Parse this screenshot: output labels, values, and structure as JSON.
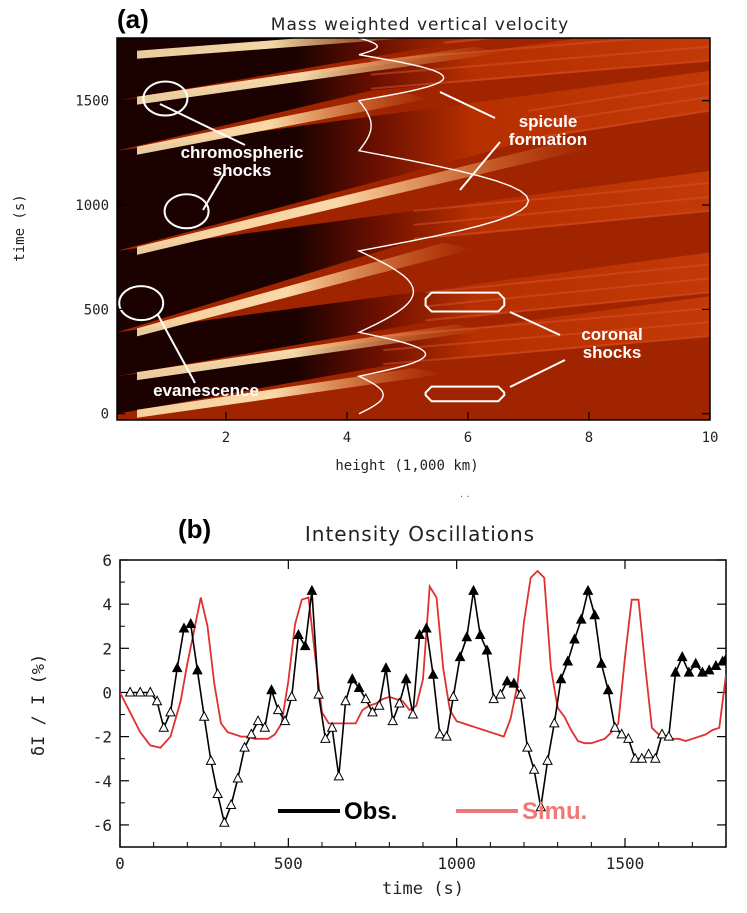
{
  "colors": {
    "obs": "#000000",
    "sim": "#e03030",
    "sim_legend": "#f07878",
    "annotation": "#ffffff",
    "heat_dark": "#140000",
    "heat_mid": "#b83000",
    "heat_light": "#ffe2b0"
  },
  "chart_data": [
    {
      "type": "heatmap",
      "panel_label": "(a)",
      "title": "Mass weighted vertical velocity",
      "xlabel": "height (1,000 km)",
      "ylabel": "time (s)",
      "xlim": [
        0.2,
        10
      ],
      "ylim": [
        -30,
        1800
      ],
      "xticks": [
        2,
        4,
        6,
        8,
        10
      ],
      "yticks": [
        0,
        500,
        1000,
        1500
      ],
      "annotations": [
        {
          "text": [
            "chromospheric",
            "shocks"
          ]
        },
        {
          "text": [
            "spicule",
            "formation"
          ]
        },
        {
          "text": [
            "coronal",
            "shocks"
          ]
        },
        {
          "text": [
            "evanescence"
          ]
        }
      ],
      "highlight_circles": [
        {
          "x": 1.0,
          "y": 1510
        },
        {
          "x": 1.35,
          "y": 970
        },
        {
          "x": 0.6,
          "y": 530
        }
      ],
      "highlight_boxes": [
        {
          "x_range": [
            5.3,
            6.6
          ],
          "y_range": [
            490,
            580
          ]
        },
        {
          "x_range": [
            5.3,
            6.6
          ],
          "y_range": [
            60,
            130
          ]
        }
      ],
      "spicule_curve": {
        "base_height": 4.2,
        "peaks": [
          {
            "t0": 0,
            "t1": 180,
            "h": 4.6
          },
          {
            "t0": 180,
            "t1": 390,
            "h": 5.3
          },
          {
            "t0": 390,
            "t1": 780,
            "h": 5.1
          },
          {
            "t0": 780,
            "t1": 1260,
            "h": 7.0
          },
          {
            "t0": 1260,
            "t1": 1500,
            "h": 4.4
          },
          {
            "t0": 1500,
            "t1": 1720,
            "h": 5.6
          },
          {
            "t0": 1720,
            "t1": 1800,
            "h": 4.5
          }
        ]
      }
    },
    {
      "type": "line",
      "panel_label": "(b)",
      "title": "Intensity Oscillations",
      "xlabel": "time (s)",
      "ylabel": "δI / I    (%)",
      "xlim": [
        0,
        1800
      ],
      "ylim": [
        -7,
        6
      ],
      "xticks": [
        0,
        500,
        1000,
        1500
      ],
      "yticks": [
        -6,
        -4,
        -2,
        0,
        2,
        4,
        6
      ],
      "series": [
        {
          "name": "Obs.",
          "marker": "triangle",
          "x": [
            30,
            60,
            90,
            110,
            130,
            150,
            170,
            190,
            210,
            230,
            250,
            270,
            290,
            310,
            330,
            350,
            370,
            390,
            410,
            430,
            450,
            470,
            490,
            510,
            530,
            550,
            570,
            590,
            610,
            630,
            650,
            670,
            690,
            710,
            730,
            750,
            770,
            790,
            810,
            830,
            850,
            870,
            890,
            910,
            930,
            950,
            970,
            990,
            1010,
            1030,
            1050,
            1070,
            1090,
            1110,
            1130,
            1150,
            1170,
            1190,
            1210,
            1230,
            1250,
            1270,
            1290,
            1310,
            1330,
            1350,
            1370,
            1390,
            1410,
            1430,
            1450,
            1470,
            1490,
            1510,
            1530,
            1550,
            1570,
            1590,
            1610,
            1630,
            1650,
            1670,
            1690,
            1710,
            1730,
            1750,
            1770,
            1790,
            1800
          ],
          "values": [
            0,
            0,
            0,
            -0.4,
            -1.6,
            -0.9,
            1.1,
            2.9,
            3.1,
            1.0,
            -1.1,
            -3.1,
            -4.6,
            -5.9,
            -5.1,
            -3.9,
            -2.5,
            -1.9,
            -1.3,
            -1.6,
            0.1,
            -0.8,
            -1.3,
            -0.2,
            2.6,
            2.1,
            4.6,
            -0.1,
            -2.1,
            -1.6,
            -3.8,
            -0.4,
            0.6,
            0.2,
            -0.3,
            -0.9,
            -0.6,
            1.1,
            -1.3,
            -0.5,
            0.6,
            -1.0,
            2.6,
            2.9,
            0.8,
            -1.9,
            -2.0,
            -0.2,
            1.6,
            2.5,
            4.6,
            2.6,
            1.9,
            -0.3,
            -0.1,
            0.5,
            0.4,
            -0.1,
            -2.5,
            -3.5,
            -5.2,
            -3.1,
            -1.4,
            0.6,
            1.4,
            2.4,
            3.3,
            4.6,
            3.5,
            1.3,
            0.1,
            -1.6,
            -1.9,
            -2.1,
            -3.0,
            -3.0,
            -2.8,
            -3.0,
            -1.9,
            -2.0,
            0.9,
            1.6,
            0.9,
            1.3,
            0.9,
            1.0,
            1.2,
            1.4,
            1.5
          ],
          "color": "#000000"
        },
        {
          "name": "Simu.",
          "marker": "none",
          "x": [
            0,
            30,
            60,
            90,
            120,
            150,
            180,
            200,
            220,
            240,
            260,
            280,
            300,
            320,
            340,
            360,
            380,
            400,
            420,
            440,
            460,
            480,
            500,
            520,
            540,
            560,
            580,
            600,
            620,
            640,
            660,
            680,
            700,
            720,
            740,
            760,
            780,
            800,
            820,
            840,
            860,
            880,
            900,
            920,
            940,
            960,
            980,
            1000,
            1020,
            1040,
            1060,
            1080,
            1100,
            1120,
            1140,
            1160,
            1180,
            1200,
            1220,
            1240,
            1260,
            1280,
            1300,
            1320,
            1340,
            1360,
            1380,
            1400,
            1420,
            1440,
            1460,
            1480,
            1500,
            1520,
            1540,
            1560,
            1580,
            1600,
            1620,
            1640,
            1660,
            1680,
            1700,
            1720,
            1740,
            1760,
            1780,
            1800
          ],
          "values": [
            0,
            -0.9,
            -1.8,
            -2.4,
            -2.5,
            -2.0,
            -0.4,
            1.3,
            2.8,
            4.3,
            3.0,
            0.4,
            -1.4,
            -1.8,
            -1.9,
            -2.0,
            -2.0,
            -2.1,
            -2.1,
            -2.1,
            -1.9,
            -1.4,
            0.5,
            3.1,
            4.2,
            4.3,
            1.6,
            -0.9,
            -1.4,
            -1.4,
            -1.4,
            -1.4,
            -1.4,
            -0.8,
            -0.6,
            -0.5,
            -0.3,
            -0.2,
            -0.3,
            -0.4,
            -0.8,
            -0.6,
            0.6,
            4.8,
            4.3,
            1.1,
            -0.8,
            -1.3,
            -1.4,
            -1.5,
            -1.6,
            -1.7,
            -1.8,
            -1.9,
            -2.0,
            -1.2,
            0.3,
            3.2,
            5.2,
            5.5,
            5.2,
            1.1,
            -0.7,
            -1.1,
            -1.7,
            -2.2,
            -2.3,
            -2.3,
            -2.2,
            -2.1,
            -1.8,
            -1.4,
            1.6,
            4.2,
            4.2,
            1.2,
            -1.6,
            -1.9,
            -2.0,
            -2.1,
            -2.1,
            -2.2,
            -2.1,
            -2.0,
            -1.9,
            -1.7,
            -1.6,
            0.8
          ],
          "color": "#e03030"
        }
      ],
      "legend": [
        "Obs.",
        "Simu."
      ],
      "legend_position": "bottom-center"
    }
  ]
}
